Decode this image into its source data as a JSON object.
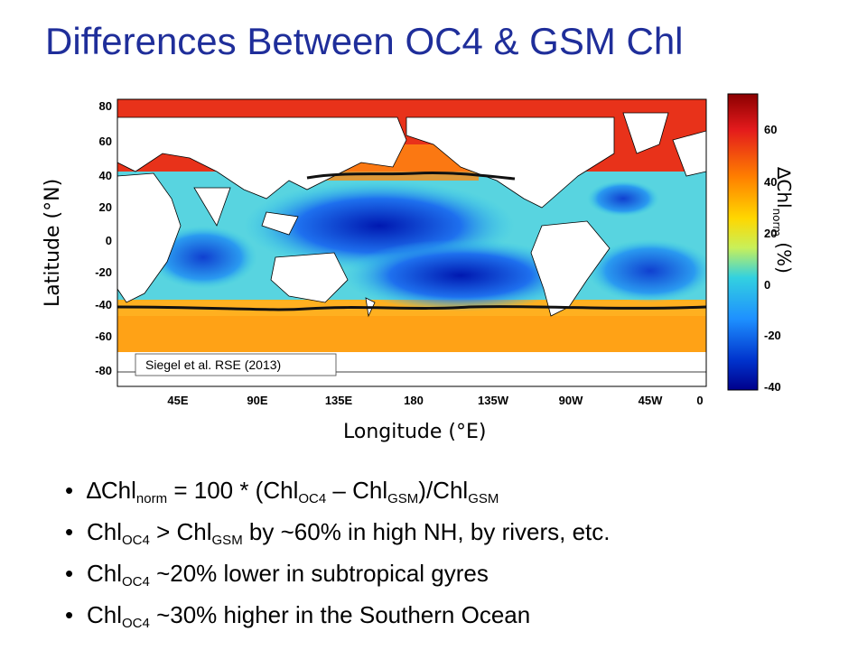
{
  "title": "Differences Between OC4 & GSM Chl",
  "figure": {
    "y_axis_label": "Latitude (°N)",
    "x_axis_label": "Longitude (°E)",
    "citation": "Siegel et al. RSE (2013)",
    "y_ticks": [
      "80",
      "60",
      "40",
      "20",
      "0",
      "-20",
      "-40",
      "-60",
      "-80"
    ],
    "x_ticks": [
      "45E",
      "90E",
      "135E",
      "180",
      "135W",
      "90W",
      "45W",
      "0"
    ],
    "colorbar": {
      "label_main": "∆Chl",
      "label_sub": "norm",
      "label_unit": " (%)",
      "ticks": [
        "60",
        "40",
        "20",
        "0",
        "-20",
        "-40"
      ],
      "colors": [
        "#8b0000",
        "#e31a1c",
        "#ff7f00",
        "#ffd700",
        "#c8f05a",
        "#33d1e0",
        "#1e90ff",
        "#0033cc",
        "#00008b"
      ]
    }
  },
  "bullets": [
    {
      "parts": [
        "∆Chl",
        "norm",
        " = 100 * (Chl",
        "OC4",
        " – Chl",
        "GSM",
        ")/Chl",
        "GSM"
      ]
    },
    {
      "parts": [
        "Chl",
        "OC4",
        " > Chl",
        "GSM",
        " by ~60% in high NH, by rivers, etc."
      ]
    },
    {
      "parts": [
        "Chl",
        "OC4",
        " ~20% lower in subtropical gyres"
      ]
    },
    {
      "parts": [
        "Chl",
        "OC4",
        " ~30% higher in the Southern Ocean"
      ]
    }
  ]
}
